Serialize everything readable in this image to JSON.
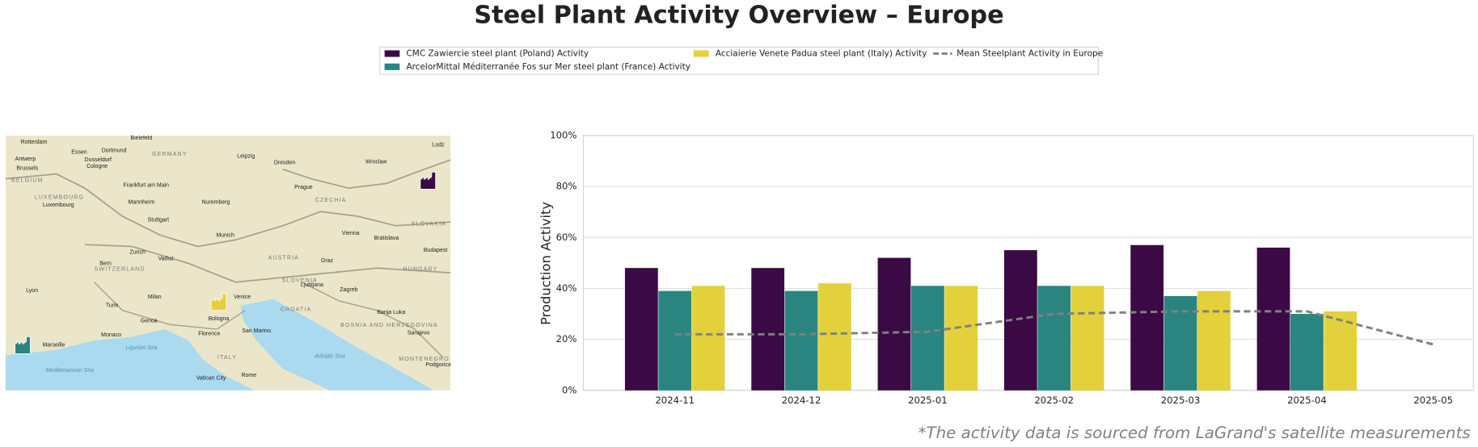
{
  "chart_data": {
    "type": "bar",
    "title": "Steel Plant Activity Overview – Europe",
    "ylabel": "Production Activity",
    "categories": [
      "2024-11",
      "2024-12",
      "2025-01",
      "2025-02",
      "2025-03",
      "2025-04",
      "2025-05"
    ],
    "series": [
      {
        "name": "CMC Zawiercie steel plant (Poland) Activity",
        "color": "#3b0a45",
        "values": [
          48,
          48,
          52,
          55,
          57,
          56,
          null
        ]
      },
      {
        "name": "ArcelorMittal Méditerranée Fos sur Mer steel plant (France) Activity",
        "color": "#2a8480",
        "values": [
          39,
          39,
          41,
          41,
          37,
          30,
          null
        ]
      },
      {
        "name": "Acciaierie Venete Padua steel plant (Italy) Activity",
        "color": "#e2d13b",
        "values": [
          41,
          42,
          41,
          41,
          39,
          31,
          null
        ]
      },
      {
        "name": "Mean Steelplant Activity in Europe",
        "color": "#808080",
        "type": "line",
        "style": "dashed",
        "values": [
          22,
          22,
          23,
          30,
          31,
          31,
          18
        ]
      }
    ],
    "ylim": [
      0,
      100
    ],
    "yticks": [
      {
        "value": 0,
        "label": "0%"
      },
      {
        "value": 20,
        "label": "20%"
      },
      {
        "value": 40,
        "label": "40%"
      },
      {
        "value": 60,
        "label": "60%"
      },
      {
        "value": 80,
        "label": "80%"
      },
      {
        "value": 100,
        "label": "100%"
      }
    ],
    "grid": true,
    "legend": "top"
  },
  "map": {
    "labels": [
      "Rotterdam",
      "Essen",
      "Dortmund",
      "Bielefeld",
      "GERMANY",
      "Leipzig",
      "Dresden",
      "Wroclaw",
      "Lodz",
      "Antwerp",
      "Dusseldorf",
      "Cologne",
      "Brussels",
      "BELGIUM",
      "Frankfurt am Main",
      "Prague",
      "LUXEMBOURG",
      "Luxembourg",
      "Mannheim",
      "Nuremberg",
      "CZECHIA",
      "Stuttgart",
      "SLOVAKIA",
      "Munich",
      "Vienna",
      "Bratislava",
      "Zurich",
      "Vaduz",
      "AUSTRIA",
      "Graz",
      "Budapest",
      "Bern",
      "SWITZERLAND",
      "HUNGARY",
      "SLOVENIA",
      "Ljubljana",
      "Zagreb",
      "Lyon",
      "Milan",
      "Venice",
      "Turin",
      "CROATIA",
      "Genoa",
      "Banja Luka",
      "Bologna",
      "BOSNIA AND HERZEGOVINA",
      "Monaco",
      "Florence",
      "San Marino",
      "Sarajevo",
      "Marseille",
      "Ligurian Sea",
      "ITALY",
      "Adriatic Sea",
      "MONTENEGRO",
      "Mediterranean Sea",
      "Vatican City",
      "Rome",
      "Podgorica"
    ]
  },
  "footnote": "*The activity data is sourced from LaGrand's satellite measurements"
}
